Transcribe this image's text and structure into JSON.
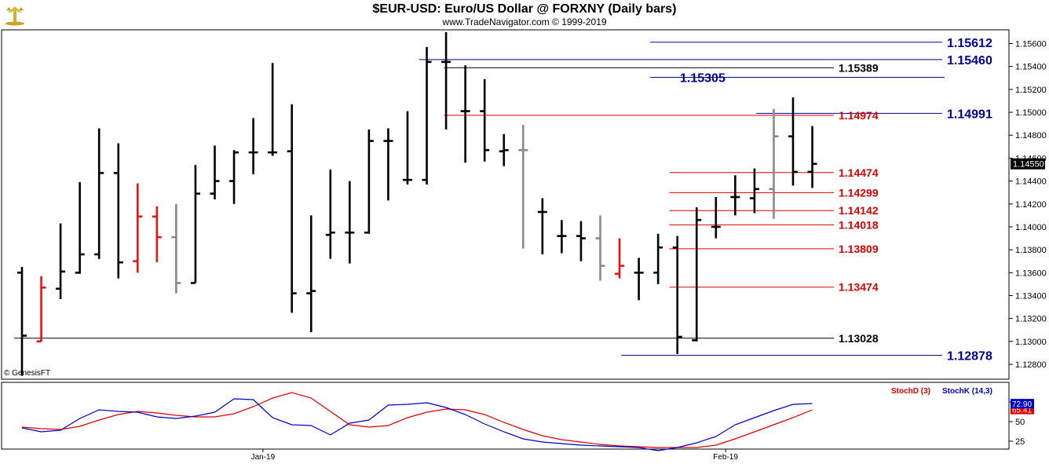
{
  "header": {
    "title": "$EUR-USD:  Euro/US Dollar @ FORXNY  (Daily bars)",
    "subtitle": "www.TradeNavigator.com © 1999-2019",
    "logo_icon": "gold-bull-logo-icon"
  },
  "watermark": "© GenesisFT",
  "colors": {
    "up": "#000000",
    "down": "#ee1111",
    "neutral": "#8a8a8a",
    "support": "#000099",
    "resistance": "#dd0000",
    "stochD": "#dd0000",
    "stochK": "#0000cc"
  },
  "chart_data": [
    {
      "type": "ohlc",
      "title": "$EUR-USD:  Euro/US Dollar @ FORXNY  (Daily bars)",
      "price_axis": {
        "ylim": [
          1.1267,
          1.1572
        ],
        "ticks": [
          "1.12800",
          "1.13000",
          "1.13200",
          "1.13400",
          "1.13600",
          "1.13800",
          "1.14000",
          "1.14200",
          "1.14400",
          "1.14600",
          "1.14800",
          "1.15000",
          "1.15200",
          "1.15400",
          "1.15600"
        ]
      },
      "last_price": "1.14550",
      "x_labels": [
        {
          "label": "Jan-19",
          "bar": 12.5
        },
        {
          "label": "Feb-19",
          "bar": 36.5
        }
      ],
      "bars": [
        {
          "o": 1.136,
          "h": 1.1365,
          "l": 1.127,
          "c": 1.1305,
          "color": "up"
        },
        {
          "o": 1.13,
          "h": 1.1357,
          "l": 1.13,
          "c": 1.1347,
          "color": "down"
        },
        {
          "o": 1.1346,
          "h": 1.1403,
          "l": 1.1337,
          "c": 1.1361,
          "color": "up"
        },
        {
          "o": 1.136,
          "h": 1.1439,
          "l": 1.1359,
          "c": 1.1376,
          "color": "up"
        },
        {
          "o": 1.1376,
          "h": 1.1486,
          "l": 1.1372,
          "c": 1.1447,
          "color": "up"
        },
        {
          "o": 1.1447,
          "h": 1.1473,
          "l": 1.1355,
          "c": 1.1369,
          "color": "up"
        },
        {
          "o": 1.137,
          "h": 1.1438,
          "l": 1.136,
          "c": 1.1409,
          "color": "down"
        },
        {
          "o": 1.1409,
          "h": 1.1418,
          "l": 1.1369,
          "c": 1.1391,
          "color": "down"
        },
        {
          "o": 1.1391,
          "h": 1.142,
          "l": 1.1342,
          "c": 1.1351,
          "color": "neutral"
        },
        {
          "o": 1.1351,
          "h": 1.1454,
          "l": 1.1351,
          "c": 1.1429,
          "color": "up"
        },
        {
          "o": 1.1429,
          "h": 1.1471,
          "l": 1.1424,
          "c": 1.144,
          "color": "up"
        },
        {
          "o": 1.144,
          "h": 1.1467,
          "l": 1.142,
          "c": 1.1465,
          "color": "up"
        },
        {
          "o": 1.1465,
          "h": 1.1495,
          "l": 1.1446,
          "c": 1.1465,
          "color": "up"
        },
        {
          "o": 1.1465,
          "h": 1.1543,
          "l": 1.1462,
          "c": 1.1465,
          "color": "up"
        },
        {
          "o": 1.1466,
          "h": 1.1507,
          "l": 1.1325,
          "c": 1.1342,
          "color": "up"
        },
        {
          "o": 1.1342,
          "h": 1.141,
          "l": 1.1308,
          "c": 1.1344,
          "color": "up"
        },
        {
          "o": 1.1393,
          "h": 1.145,
          "l": 1.1372,
          "c": 1.1395,
          "color": "up"
        },
        {
          "o": 1.1395,
          "h": 1.144,
          "l": 1.1368,
          "c": 1.1395,
          "color": "up"
        },
        {
          "o": 1.1395,
          "h": 1.1485,
          "l": 1.1394,
          "c": 1.1475,
          "color": "up"
        },
        {
          "o": 1.1475,
          "h": 1.1486,
          "l": 1.1423,
          "c": 1.1475,
          "color": "up"
        },
        {
          "o": 1.1441,
          "h": 1.1501,
          "l": 1.1437,
          "c": 1.1441,
          "color": "up"
        },
        {
          "o": 1.1441,
          "h": 1.1557,
          "l": 1.1437,
          "c": 1.1544,
          "color": "up"
        },
        {
          "o": 1.1544,
          "h": 1.157,
          "l": 1.1485,
          "c": 1.1544,
          "color": "up"
        },
        {
          "o": 1.1501,
          "h": 1.1541,
          "l": 1.1456,
          "c": 1.1501,
          "color": "up"
        },
        {
          "o": 1.1501,
          "h": 1.1529,
          "l": 1.1457,
          "c": 1.1467,
          "color": "up"
        },
        {
          "o": 1.1466,
          "h": 1.1481,
          "l": 1.1453,
          "c": 1.1467,
          "color": "up"
        },
        {
          "o": 1.1467,
          "h": 1.1489,
          "l": 1.1381,
          "c": 1.1467,
          "color": "neutral"
        },
        {
          "o": 1.1413,
          "h": 1.1425,
          "l": 1.1376,
          "c": 1.1413,
          "color": "up"
        },
        {
          "o": 1.1392,
          "h": 1.1406,
          "l": 1.1377,
          "c": 1.1392,
          "color": "up"
        },
        {
          "o": 1.1392,
          "h": 1.1405,
          "l": 1.137,
          "c": 1.139,
          "color": "up"
        },
        {
          "o": 1.139,
          "h": 1.141,
          "l": 1.1353,
          "c": 1.1366,
          "color": "neutral"
        },
        {
          "o": 1.1359,
          "h": 1.139,
          "l": 1.1355,
          "c": 1.1366,
          "color": "down"
        },
        {
          "o": 1.136,
          "h": 1.1373,
          "l": 1.1336,
          "c": 1.136,
          "color": "up"
        },
        {
          "o": 1.136,
          "h": 1.1394,
          "l": 1.135,
          "c": 1.1382,
          "color": "up"
        },
        {
          "o": 1.1382,
          "h": 1.1392,
          "l": 1.1289,
          "c": 1.1304,
          "color": "up"
        },
        {
          "o": 1.1301,
          "h": 1.1417,
          "l": 1.13,
          "c": 1.1406,
          "color": "up"
        },
        {
          "o": 1.14,
          "h": 1.1426,
          "l": 1.139,
          "c": 1.14,
          "color": "up"
        },
        {
          "o": 1.1426,
          "h": 1.1445,
          "l": 1.141,
          "c": 1.1426,
          "color": "up"
        },
        {
          "o": 1.1425,
          "h": 1.1451,
          "l": 1.1412,
          "c": 1.1433,
          "color": "up"
        },
        {
          "o": 1.1433,
          "h": 1.1503,
          "l": 1.1407,
          "c": 1.1479,
          "color": "neutral"
        },
        {
          "o": 1.1479,
          "h": 1.1513,
          "l": 1.1436,
          "c": 1.1448,
          "color": "up"
        },
        {
          "o": 1.1448,
          "h": 1.1488,
          "l": 1.1434,
          "c": 1.1455,
          "color": "up"
        }
      ],
      "levels": [
        {
          "label": "1.15612",
          "value": 1.15612,
          "color": "support",
          "from_bar": 33.0
        },
        {
          "label": "1.15460",
          "value": 1.1546,
          "color": "support",
          "from_bar": 21.0
        },
        {
          "label": "1.15389",
          "value": 1.15389,
          "color": "plain",
          "from_bar": 22.3
        },
        {
          "label": "1.15305",
          "value": 1.15305,
          "color": "support",
          "from_bar": 33.0
        },
        {
          "label": "1.14991",
          "value": 1.14991,
          "color": "support",
          "from_bar": 38.5
        },
        {
          "label": "1.14974",
          "value": 1.14974,
          "color": "resistance",
          "from_bar": 22.3
        },
        {
          "label": "1.14474",
          "value": 1.14474,
          "color": "resistance",
          "from_bar": 34.0
        },
        {
          "label": "1.14299",
          "value": 1.14299,
          "color": "resistance",
          "from_bar": 34.0
        },
        {
          "label": "1.14142",
          "value": 1.14142,
          "color": "resistance",
          "from_bar": 34.0
        },
        {
          "label": "1.14018",
          "value": 1.14018,
          "color": "resistance",
          "from_bar": 34.0
        },
        {
          "label": "1.13809",
          "value": 1.13809,
          "color": "resistance",
          "from_bar": 34.0
        },
        {
          "label": "1.13474",
          "value": 1.13474,
          "color": "resistance",
          "from_bar": 34.0
        },
        {
          "label": "1.13028",
          "value": 1.13028,
          "color": "plain",
          "from_bar": 0.0
        },
        {
          "label": "1.12878",
          "value": 1.12878,
          "color": "support",
          "from_bar": 31.5
        }
      ]
    },
    {
      "type": "line",
      "title": "Stochastic",
      "ylim": [
        15,
        100
      ],
      "y_ticks": [
        "25",
        "50",
        "75"
      ],
      "series": [
        {
          "name": "StochD (3)",
          "color": "stochD",
          "last": "65.41",
          "values": [
            43,
            41,
            40,
            44,
            52,
            59,
            63,
            61,
            58,
            56,
            56,
            60,
            69,
            80,
            87,
            80,
            63,
            46,
            43,
            45,
            55,
            62,
            66,
            65,
            59,
            49,
            40,
            32,
            27,
            24,
            21,
            19,
            18,
            17,
            17,
            17,
            20,
            28,
            37,
            46,
            55,
            65
          ]
        },
        {
          "name": "StochK (14,3)",
          "color": "stochK",
          "last": "72.90",
          "values": [
            42,
            37,
            39,
            54,
            65,
            63,
            62,
            56,
            54,
            57,
            62,
            79,
            78,
            55,
            46,
            45,
            33,
            48,
            52,
            71,
            72,
            74,
            68,
            59,
            47,
            37,
            28,
            24,
            22,
            20,
            19,
            18,
            17,
            13,
            17,
            23,
            31,
            46,
            55,
            64,
            72,
            73
          ]
        }
      ]
    }
  ]
}
